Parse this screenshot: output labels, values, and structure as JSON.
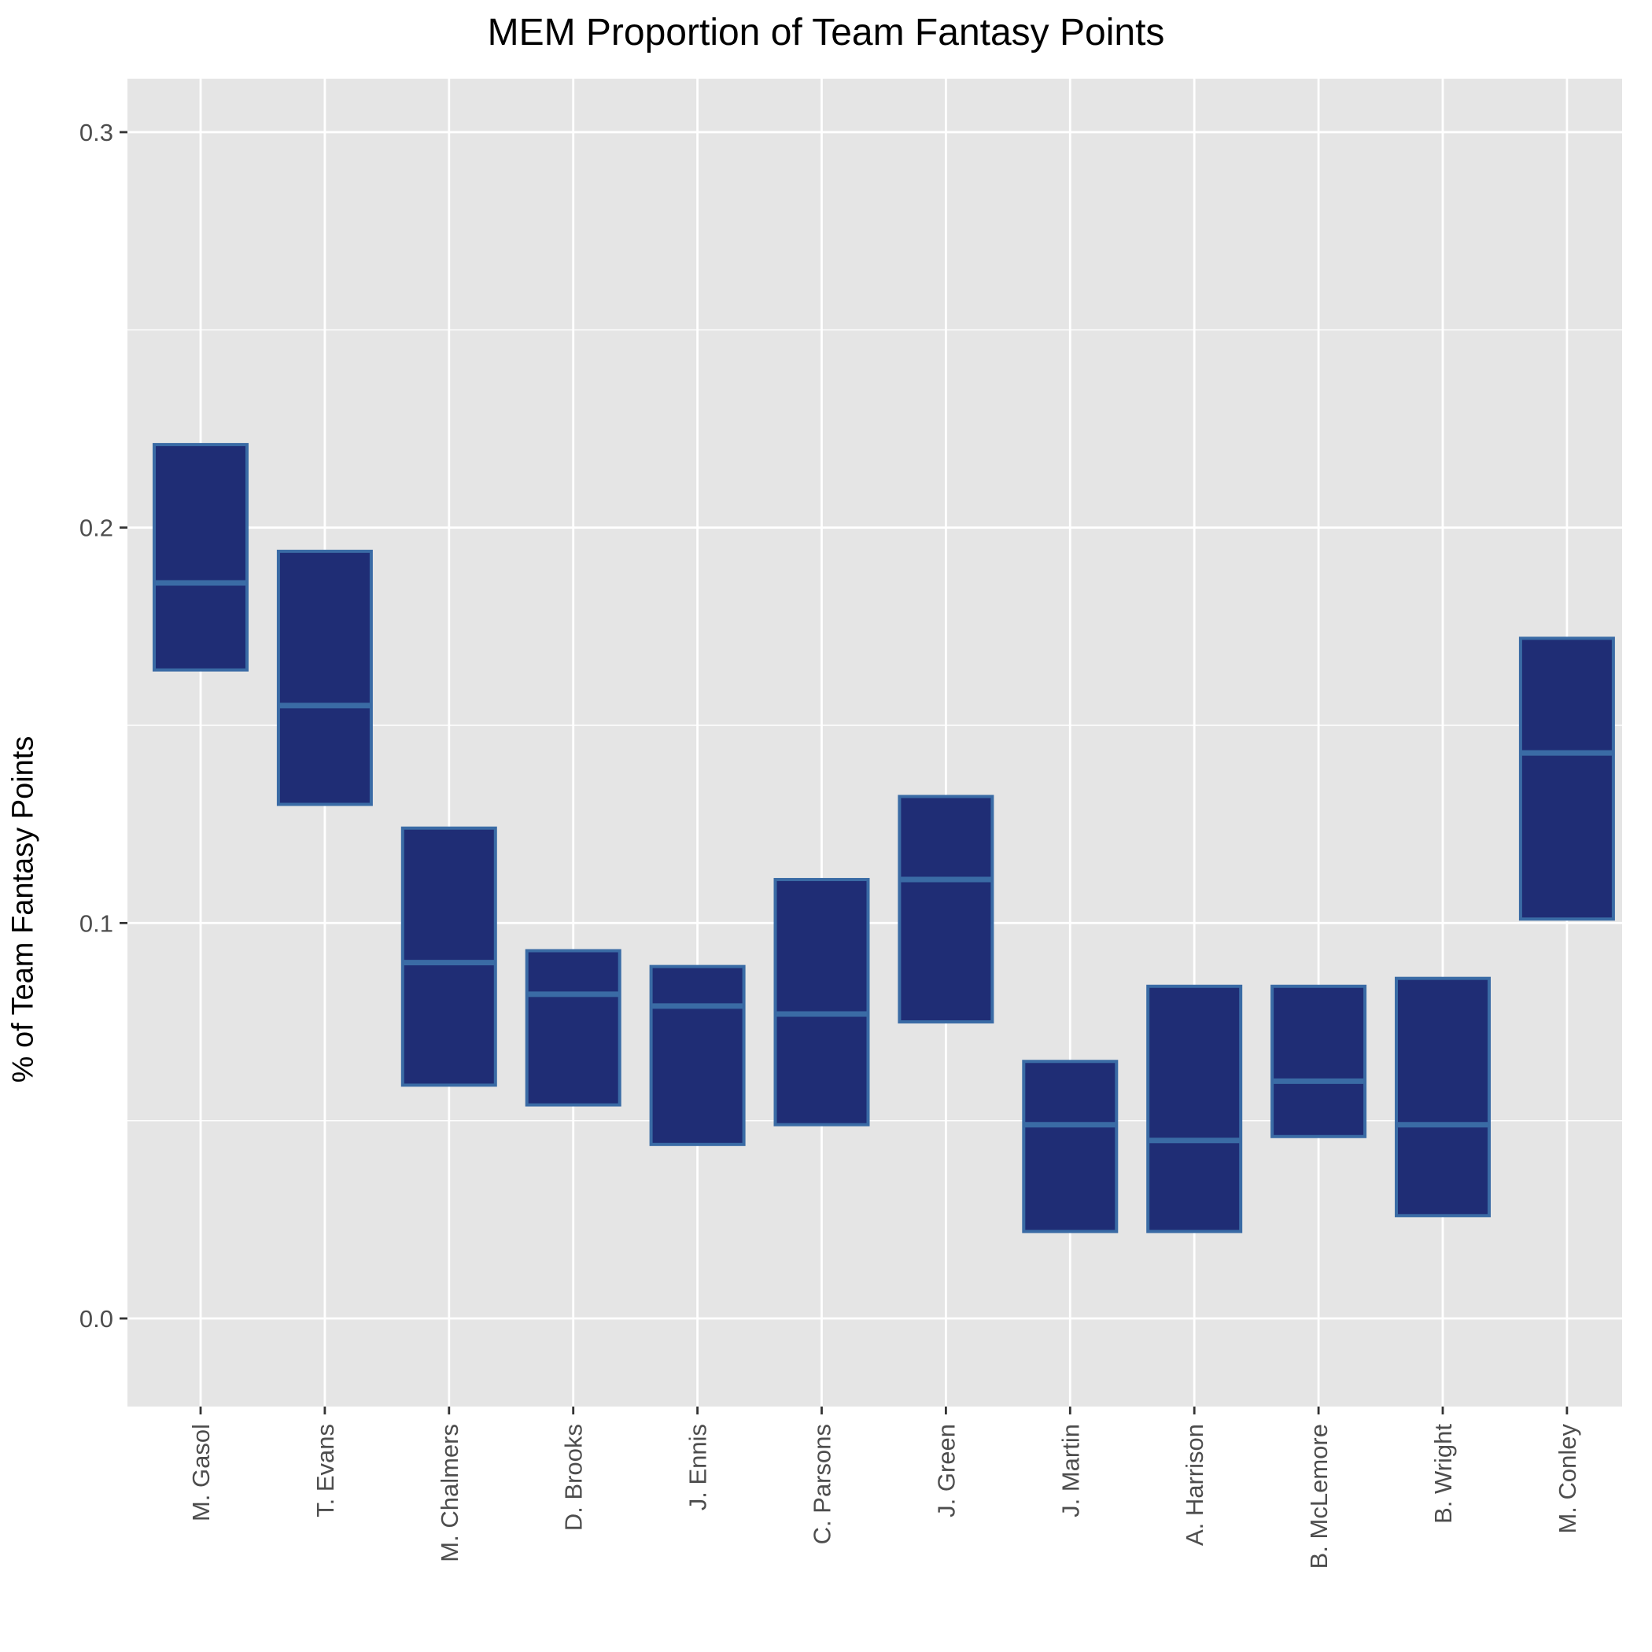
{
  "chart_data": {
    "type": "bar",
    "subtype": "floating-range-with-median",
    "title": "MEM Proportion of Team Fantasy Points",
    "xlabel": "",
    "ylabel": "% of Team Fantasy Points",
    "ylim": [
      -0.02,
      0.315
    ],
    "yticks": [
      0.0,
      0.1,
      0.2,
      0.3
    ],
    "ytick_labels": [
      "0.0",
      "0.1",
      "0.2",
      "0.3"
    ],
    "grid": true,
    "legend": "none",
    "categories": [
      "M. Gasol",
      "T. Evans",
      "M. Chalmers",
      "D. Brooks",
      "J. Ennis",
      "C. Parsons",
      "J. Green",
      "J. Martin",
      "A. Harrison",
      "B. McLemore",
      "B. Wright",
      "M. Conley"
    ],
    "series": [
      {
        "name": "low",
        "values": [
          0.164,
          0.13,
          0.059,
          0.054,
          0.044,
          0.049,
          0.075,
          0.022,
          0.022,
          0.046,
          0.026,
          0.101
        ]
      },
      {
        "name": "median",
        "values": [
          0.186,
          0.155,
          0.09,
          0.082,
          0.079,
          0.077,
          0.111,
          0.049,
          0.045,
          0.06,
          0.049,
          0.143
        ]
      },
      {
        "name": "high",
        "values": [
          0.221,
          0.194,
          0.124,
          0.093,
          0.089,
          0.111,
          0.132,
          0.065,
          0.084,
          0.084,
          0.086,
          0.172
        ]
      }
    ],
    "colors": {
      "fill": "#1f2d75",
      "outline": "#3a6ba5",
      "median": "#3a6ba5",
      "panel": "#e5e5e5",
      "grid": "#ffffff",
      "text": "#4d4d4d",
      "tick": "#333333"
    }
  }
}
